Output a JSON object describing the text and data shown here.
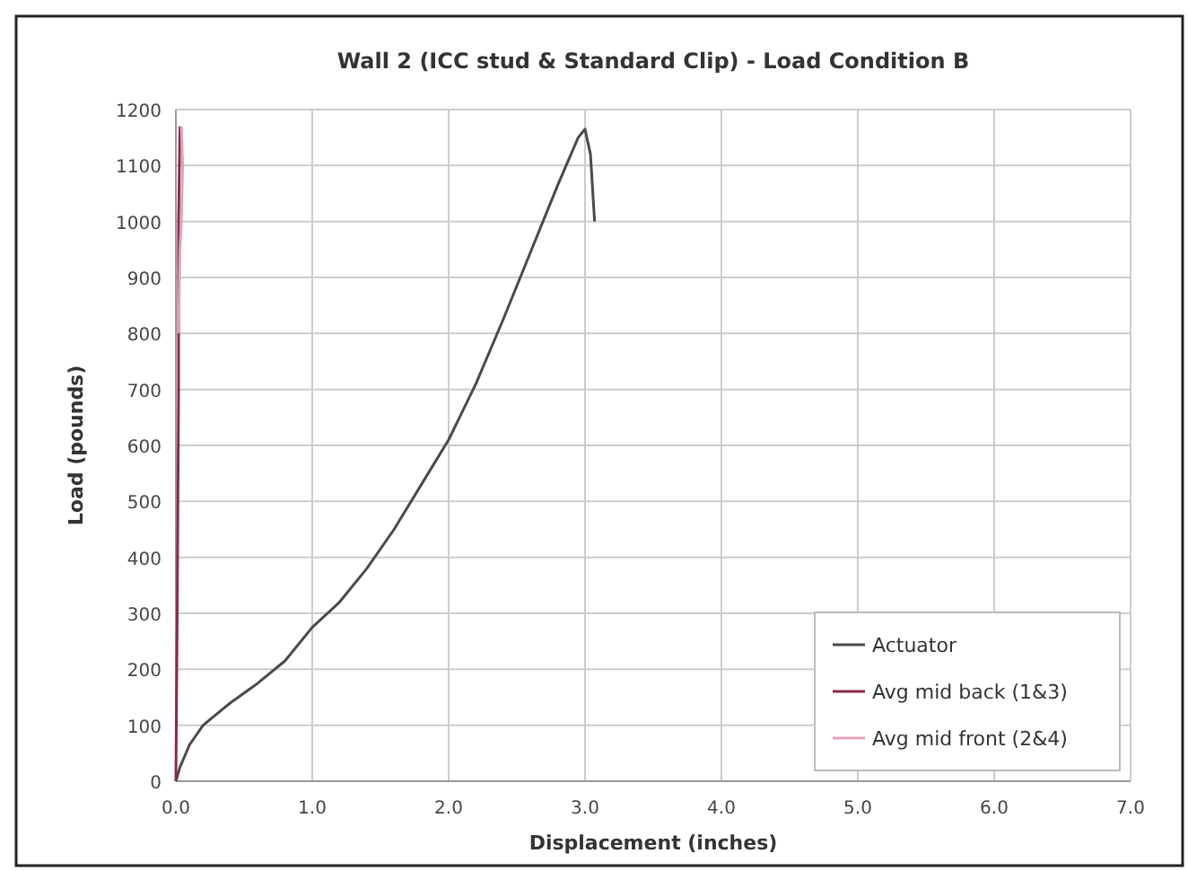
{
  "chart_data": {
    "type": "line",
    "title": "Wall 2 (ICC stud & Standard Clip) - Load Condition B",
    "xlabel": "Displacement (inches)",
    "ylabel": "Load (pounds)",
    "xlim": [
      0,
      7
    ],
    "xticks": [
      {
        "value": 0,
        "label": "0.0"
      },
      {
        "value": 1,
        "label": "1.0"
      },
      {
        "value": 2,
        "label": "2.0"
      },
      {
        "value": 3,
        "label": "3.0"
      },
      {
        "value": 4,
        "label": "4.0"
      },
      {
        "value": 5,
        "label": "5.0"
      },
      {
        "value": 6,
        "label": "6.0"
      },
      {
        "value": 7,
        "label": "7.0"
      }
    ],
    "ylim": [
      0,
      1200
    ],
    "yticks": [
      0,
      100,
      200,
      300,
      400,
      500,
      600,
      700,
      800,
      900,
      1000,
      1100,
      1200
    ],
    "grid": true,
    "legend": "bottom right",
    "marker": "none",
    "line_style": "solid",
    "series": [
      {
        "name": "Actuator",
        "color": "#4a4a4a",
        "x": [
          0,
          0.03,
          0.1,
          0.2,
          0.4,
          0.6,
          0.8,
          1.0,
          1.2,
          1.4,
          1.6,
          1.8,
          2.0,
          2.2,
          2.4,
          2.6,
          2.8,
          2.95,
          3.0,
          3.04,
          3.07
        ],
        "values": [
          0,
          25,
          65,
          100,
          140,
          175,
          215,
          275,
          320,
          380,
          450,
          530,
          610,
          710,
          825,
          945,
          1065,
          1150,
          1165,
          1120,
          1000
        ]
      },
      {
        "name": "Avg mid back (1&3)",
        "color": "#8b2a45",
        "x": [
          0,
          0.01,
          0.02,
          0.02,
          0.03
        ],
        "values": [
          0,
          300,
          700,
          1000,
          1170
        ]
      },
      {
        "name": "Avg mid front (2&4)",
        "color": "#e3a3b5",
        "x": [
          0.02,
          0.03,
          0.04,
          0.05,
          0.04
        ],
        "values": [
          800,
          950,
          1000,
          1100,
          1170
        ]
      }
    ]
  }
}
